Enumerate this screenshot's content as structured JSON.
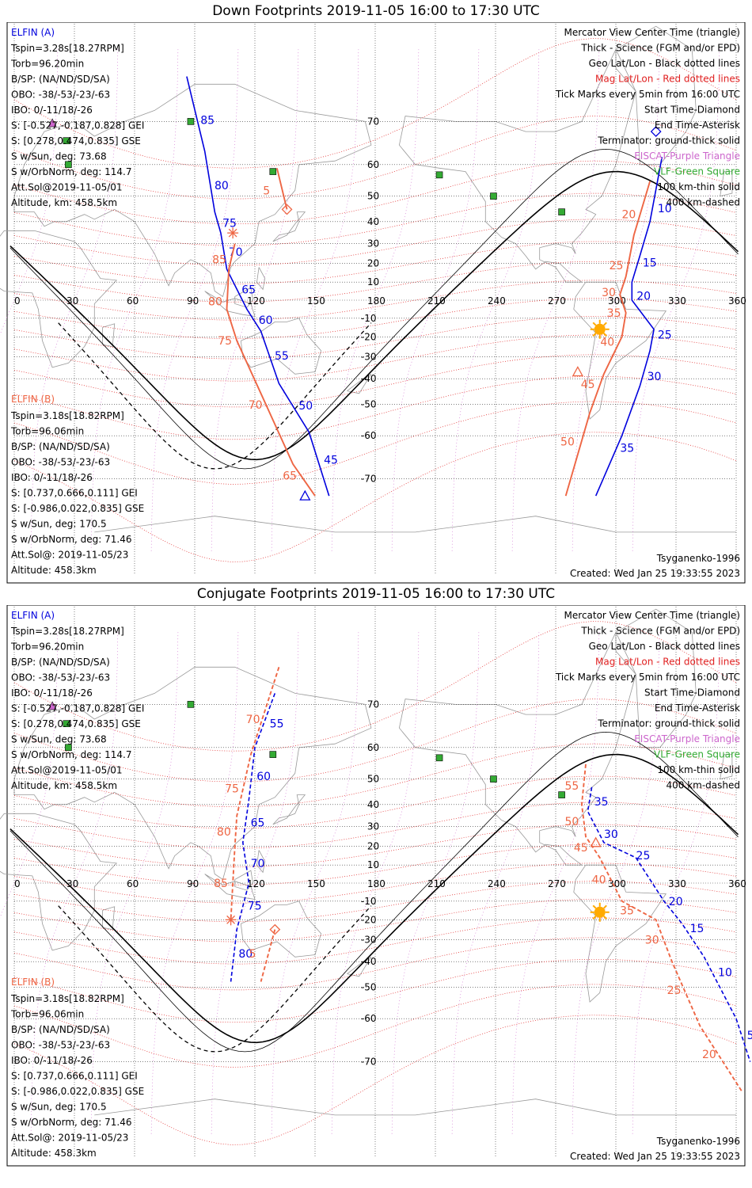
{
  "panels": [
    {
      "id": "down",
      "title": "Down Footprints 2019-11-05 16:00 to 17:30 UTC",
      "right_legend": [
        {
          "text": "Mercator View Center Time (triangle)",
          "color": "#000000"
        },
        {
          "text": "Thick - Science (FGM and/or EPD)",
          "color": "#000000"
        },
        {
          "text": "Geo Lat/Lon - Black dotted lines",
          "color": "#000000"
        },
        {
          "text": "Mag Lat/Lon - Red dotted lines",
          "color": "#e02020"
        },
        {
          "text": "Tick Marks every 5min from 16:00 UTC",
          "color": "#000000"
        },
        {
          "text": "Start Time-Diamond",
          "color": "#000000"
        },
        {
          "text": "End Time-Asterisk",
          "color": "#000000"
        },
        {
          "text": "Terminator: ground-thick solid",
          "color": "#000000"
        },
        {
          "text": "EISCAT-Purple Triangle",
          "color": "#cc66cc"
        },
        {
          "text": "VLF-Green Square",
          "color": "#33aa33"
        },
        {
          "text": "100 km-thin solid",
          "color": "#000000"
        },
        {
          "text": "400 km-dashed",
          "color": "#000000"
        }
      ],
      "elfin_a": {
        "header": "ELFIN (A)",
        "lines": [
          "Tspin=3.28s[18.27RPM]",
          "Torb=96.20min",
          "B/SP: (NA/ND/SD/SA)",
          "OBO: -38/-53/-23/-63",
          "IBO: 0/-11/18/-26",
          "S: [-0.527,-0.187,0.828] GEI",
          "S: [0.278,0.474,0.835] GSE",
          "S w/Sun, deg: 73.68",
          "S w/OrbNorm, deg: 114.7",
          "Att.Sol@2019-11-05/01",
          "Altitude, km: 458.5km"
        ]
      },
      "elfin_b": {
        "header": "ELFIN (B)",
        "lines": [
          "Tspin=3.18s[18.82RPM]",
          "Torb=96.06min",
          "B/SP: (NA/ND/SD/SA)",
          "OBO: -38/-53/-23/-63",
          "IBO: 0/-11/18/-26",
          "S: [0.737,0.666,0.111] GEI",
          "S: [-0.986,0.022,0.835] GSE",
          "S w/Sun, deg: 170.5",
          "S w/OrbNorm, deg: 71.46",
          "Att.Sol@: 2019-11-05/23",
          "Altitude: 458.3km"
        ]
      },
      "model": "Tsyganenko-1996",
      "created": "Created: Wed Jan 25 19:33:55 2023"
    },
    {
      "id": "conjugate",
      "title": "Conjugate Footprints 2019-11-05 16:00 to 17:30 UTC",
      "right_legend": [
        {
          "text": "Mercator View Center Time (triangle)",
          "color": "#000000"
        },
        {
          "text": "Thick - Science (FGM and/or EPD)",
          "color": "#000000"
        },
        {
          "text": "Geo Lat/Lon - Black dotted lines",
          "color": "#000000"
        },
        {
          "text": "Mag Lat/Lon - Red dotted lines",
          "color": "#e02020"
        },
        {
          "text": "Tick Marks every 5min from 16:00 UTC",
          "color": "#000000"
        },
        {
          "text": "Start Time-Diamond",
          "color": "#000000"
        },
        {
          "text": "End Time-Asterisk",
          "color": "#000000"
        },
        {
          "text": "Terminator: ground-thick solid",
          "color": "#000000"
        },
        {
          "text": "EISCAT-Purple Triangle",
          "color": "#cc66cc"
        },
        {
          "text": "VLF-Green Square",
          "color": "#33aa33"
        },
        {
          "text": "100 km-thin solid",
          "color": "#000000"
        },
        {
          "text": "400 km-dashed",
          "color": "#000000"
        }
      ],
      "elfin_a": {
        "header": "ELFIN (A)",
        "lines": [
          "Tspin=3.28s[18.27RPM]",
          "Torb=96.20min",
          "B/SP: (NA/ND/SD/SA)",
          "OBO: -38/-53/-23/-63",
          "IBO: 0/-11/18/-26",
          "S: [-0.527,-0.187,0.828] GEI",
          "S: [0.278,0.474,0.835] GSE",
          "S w/Sun, deg: 73.68",
          "S w/OrbNorm, deg: 114.7",
          "Att.Sol@2019-11-05/01",
          "Altitude, km: 458.5km"
        ]
      },
      "elfin_b": {
        "header": "ELFIN (B)",
        "lines": [
          "Tspin=3.18s[18.82RPM]",
          "Torb=96.06min",
          "B/SP: (NA/ND/SD/SA)",
          "OBO: -38/-53/-23/-63",
          "IBO: 0/-11/18/-26",
          "S: [0.737,0.666,0.111] GEI",
          "S: [-0.986,0.022,0.835] GSE",
          "S w/Sun, deg: 170.5",
          "S w/OrbNorm, deg: 71.46",
          "Att.Sol@: 2019-11-05/23",
          "Altitude: 458.3km"
        ]
      },
      "model": "Tsyganenko-1996",
      "created": "Created: Wed Jan 25 19:33:55 2023"
    }
  ],
  "chart_data": [
    {
      "type": "line",
      "title": "Down Footprints 2019-11-05 16:00 to 17:30 UTC",
      "projection": "mercator",
      "xlim": [
        0,
        360
      ],
      "x_ticks": [
        0,
        30,
        60,
        90,
        120,
        150,
        180,
        210,
        240,
        270,
        300,
        330,
        360
      ],
      "lat_ticks": [
        -70,
        -60,
        -50,
        -40,
        -30,
        -20,
        -10,
        0,
        10,
        20,
        30,
        40,
        50,
        60,
        70
      ],
      "colors": {
        "elfin_a": "#0000dd",
        "elfin_b": "#ee6644",
        "mag_grid": "#e02020",
        "geo_grid": "#000000",
        "coast": "#999999",
        "vlf": "#33aa33",
        "sun": "#ffaa00"
      },
      "series": [
        {
          "name": "ELFIN (A)",
          "style": "solid",
          "segments": [
            {
              "labels": [
                "85",
                "80",
                "75",
                "70",
                "65",
                "60",
                "55",
                "50",
                "45"
              ],
              "points": [
                [
                  86,
                  77
                ],
                [
                  95,
                  63.5
                ],
                [
                  100,
                  44
                ],
                [
                  103,
                  35
                ],
                [
                  106,
                  17
                ],
                [
                  116,
                  -5
                ],
                [
                  123,
                  -17
                ],
                [
                  132,
                  -42
                ],
                [
                  147,
                  -59
                ],
                [
                  157,
                  -73
                ]
              ]
            },
            {
              "labels": [
                "10",
                "15",
                "20",
                "25",
                "30",
                "35"
              ],
              "points": [
                [
                  323,
                  62
                ],
                [
                  317,
                  40
                ],
                [
                  312,
                  24
                ],
                [
                  308,
                  10
                ],
                [
                  308,
                  0
                ],
                [
                  319,
                  -16
                ],
                [
                  317,
                  -27
                ],
                [
                  312,
                  -43
                ],
                [
                  303,
                  -60
                ],
                [
                  290,
                  -73
                ]
              ]
            }
          ]
        },
        {
          "name": "ELFIN (B)",
          "style": "solid",
          "segments": [
            {
              "labels": [
                "5"
              ],
              "points": [
                [
                  131,
                  59
                ],
                [
                  136,
                  45
                ]
              ]
            },
            {
              "labels": [
                "85",
                "80",
                "75",
                "70",
                "65"
              ],
              "points": [
                [
                  110,
                  30
                ],
                [
                  107,
                  17
                ],
                [
                  106,
                  -5
                ],
                [
                  111,
                  -22
                ],
                [
                  123,
                  -46
                ],
                [
                  139,
                  -67
                ],
                [
                  150,
                  -73
                ]
              ]
            },
            {
              "labels": [
                "20",
                "25",
                "30",
                "35",
                "40",
                "45",
                "50"
              ],
              "points": [
                [
                  317,
                  55
                ],
                [
                  309,
                  34
                ],
                [
                  305,
                  13
                ],
                [
                  302,
                  3
                ],
                [
                  305,
                  -7
                ],
                [
                  303,
                  -20
                ],
                [
                  294,
                  -38
                ],
                [
                  287,
                  -53
                ],
                [
                  275,
                  -73
                ]
              ]
            }
          ]
        }
      ],
      "markers": {
        "start_diamond": [
          {
            "lat": 45,
            "lon": 136,
            "sat": "B"
          },
          {
            "lat": 68,
            "lon": 320,
            "sat": "A"
          }
        ],
        "end_asterisk": [
          {
            "lat": 35,
            "lon": 109,
            "sat": "B"
          }
        ],
        "view_center_triangle": [
          {
            "lat": -73,
            "lon": 145,
            "sat": "A"
          },
          {
            "lat": -37,
            "lon": 281,
            "sat": "B"
          }
        ],
        "vlf_squares": [
          [
            88,
            70
          ],
          [
            26,
            66
          ],
          [
            27,
            60
          ],
          [
            129,
            58
          ],
          [
            212,
            57
          ],
          [
            239,
            50
          ],
          [
            273,
            44
          ]
        ],
        "eiscat_triangle": [
          [
            19,
            69.6
          ]
        ],
        "sun": [
          292,
          -16
        ]
      }
    },
    {
      "type": "line",
      "title": "Conjugate Footprints 2019-11-05 16:00 to 17:30 UTC",
      "projection": "mercator",
      "xlim": [
        0,
        360
      ],
      "x_ticks": [
        0,
        30,
        60,
        90,
        120,
        150,
        180,
        210,
        240,
        270,
        300,
        330,
        360
      ],
      "lat_ticks": [
        -70,
        -60,
        -50,
        -40,
        -30,
        -20,
        -10,
        0,
        10,
        20,
        30,
        40,
        50,
        60,
        70
      ],
      "colors": {
        "elfin_a": "#0000dd",
        "elfin_b": "#ee6644",
        "mag_grid": "#e02020",
        "geo_grid": "#000000",
        "coast": "#999999",
        "vlf": "#33aa33",
        "sun": "#ffaa00"
      },
      "series": [
        {
          "name": "ELFIN (A)",
          "style": "dashed",
          "segments": [
            {
              "labels": [
                "55",
                "60",
                "65",
                "70",
                "75",
                "80"
              ],
              "points": [
                [
                  130,
                  72
                ],
                [
                  120,
                  60
                ],
                [
                  117,
                  42
                ],
                [
                  114,
                  22
                ],
                [
                  117,
                  0
                ],
                [
                  111,
                  -25
                ],
                [
                  108,
                  -48
                ]
              ]
            },
            {
              "labels": [
                "35",
                "30",
                "25",
                "20",
                "15",
                "10",
                "5"
              ],
              "points": [
                [
                  288,
                  47
                ],
                [
                  286,
                  37
                ],
                [
                  294,
                  22
                ],
                [
                  310,
                  14
                ],
                [
                  324,
                  -10
                ],
                [
                  333,
                  -22
                ],
                [
                  344,
                  -38
                ],
                [
                  360,
                  -60
                ],
                [
                  367,
                  -70
                ]
              ]
            }
          ]
        },
        {
          "name": "ELFIN (B)",
          "style": "dashed",
          "segments": [
            {
              "labels": [
                "70",
                "75",
                "80",
                "85"
              ],
              "points": [
                [
                  132,
                  76
                ],
                [
                  118,
                  58
                ],
                [
                  111,
                  35
                ],
                [
                  110,
                  20
                ],
                [
                  108,
                  -20
                ]
              ]
            },
            {
              "labels": [
                "5"
              ],
              "points": [
                [
                  130,
                  -25
                ],
                [
                  123,
                  -48
                ]
              ]
            },
            {
              "labels": [
                "55",
                "50",
                "45",
                "40",
                "35",
                "30",
                "25",
                "20"
              ],
              "points": [
                [
                  285,
                  55
                ],
                [
                  283,
                  40
                ],
                [
                  285,
                  25
                ],
                [
                  292,
                  14
                ],
                [
                  303,
                  -10
                ],
                [
                  320,
                  -20
                ],
                [
                  328,
                  -40
                ],
                [
                  342,
                  -62
                ],
                [
                  363,
                  -75
                ]
              ]
            }
          ]
        }
      ],
      "markers": {
        "start_diamond": [
          {
            "lat": -25,
            "lon": 130,
            "sat": "B"
          }
        ],
        "end_asterisk": [
          {
            "lat": -20,
            "lon": 108,
            "sat": "B"
          }
        ],
        "view_center_triangle": [
          {
            "lat": 22,
            "lon": 290,
            "sat": "B"
          }
        ],
        "vlf_squares": [
          [
            88,
            70
          ],
          [
            26,
            66
          ],
          [
            27,
            60
          ],
          [
            129,
            58
          ],
          [
            212,
            57
          ],
          [
            239,
            50
          ],
          [
            273,
            44
          ]
        ],
        "eiscat_triangle": [
          [
            19,
            69.6
          ]
        ],
        "sun": [
          292,
          -16
        ]
      }
    }
  ]
}
